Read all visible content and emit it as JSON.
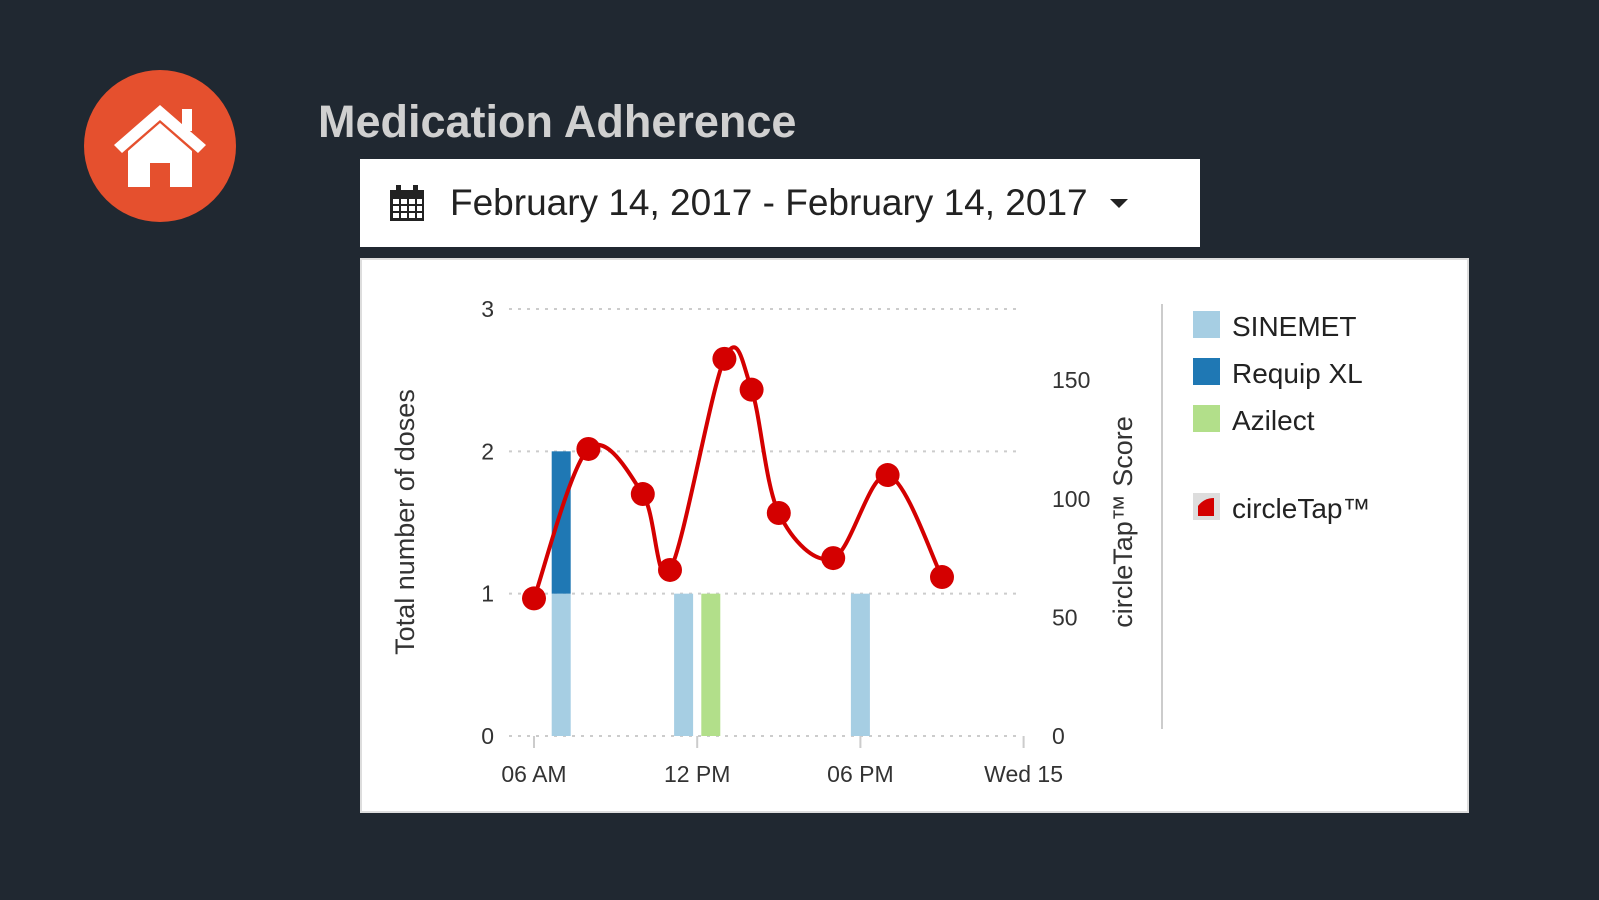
{
  "header": {
    "title": "Medication Adherence",
    "home_icon": "home-icon"
  },
  "date_range": {
    "label": "February 14, 2017 - February 14, 2017",
    "icon": "calendar-icon"
  },
  "chart_data": {
    "type": "bar+line",
    "x_ticks": [
      {
        "hour": 6,
        "label": "06 AM"
      },
      {
        "hour": 12,
        "label": "12 PM"
      },
      {
        "hour": 18,
        "label": "06 PM"
      },
      {
        "hour": 24,
        "label": "Wed 15"
      }
    ],
    "xlim_hours": [
      5,
      24
    ],
    "left_axis": {
      "label": "Total number of doses",
      "ticks": [
        "0",
        "1",
        "2",
        "3"
      ],
      "ylim": [
        0,
        3
      ]
    },
    "right_axis": {
      "label": "circleTap™ Score",
      "ticks": [
        "0",
        "50",
        "100",
        "150"
      ],
      "ylim": [
        0,
        180
      ]
    },
    "bars": [
      {
        "series": "SINEMET",
        "hour": 7,
        "base": 0,
        "value": 1
      },
      {
        "series": "Requip XL",
        "hour": 7,
        "base": 1,
        "value": 1
      },
      {
        "series": "SINEMET",
        "hour": 11.5,
        "base": 0,
        "value": 1
      },
      {
        "series": "Azilect",
        "hour": 12.5,
        "base": 0,
        "value": 1
      },
      {
        "series": "SINEMET",
        "hour": 18,
        "base": 0,
        "value": 1
      }
    ],
    "line": {
      "name": "circleTap™",
      "color": "#d40000",
      "points": [
        [
          6,
          58
        ],
        [
          8,
          121
        ],
        [
          10,
          102
        ],
        [
          11,
          70
        ],
        [
          13,
          159
        ],
        [
          14,
          146
        ],
        [
          15,
          94
        ],
        [
          17,
          75
        ],
        [
          19,
          110
        ],
        [
          21,
          67
        ]
      ]
    },
    "legend": [
      {
        "name": "SINEMET",
        "color": "#a6cee3"
      },
      {
        "name": "Requip XL",
        "color": "#1f78b4"
      },
      {
        "name": "Azilect",
        "color": "#b2df8a"
      },
      {
        "name": "circleTap™",
        "color": "#d40000"
      }
    ],
    "legend_position": "right",
    "grid": true
  }
}
